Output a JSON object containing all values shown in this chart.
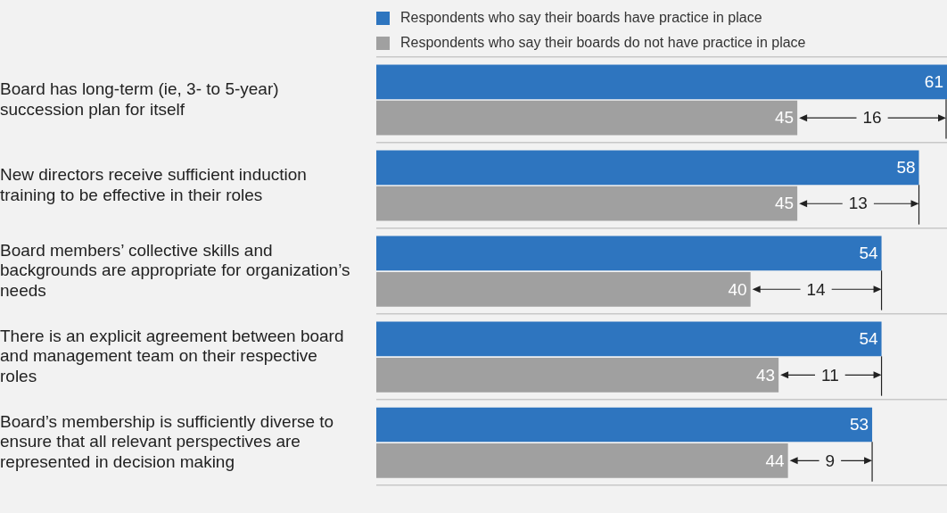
{
  "chart_data": {
    "type": "bar",
    "orientation": "horizontal",
    "categories": [
      "Board has long-term (ie, 3- to 5-year) succession plan for itself",
      "New directors receive sufficient induction training to be effective in their roles",
      "Board members’ collective skills and backgrounds are appropriate for organization’s needs",
      "There is an explicit agreement between board and management team on their respective roles",
      "Board’s membership is sufficiently diverse to ensure that all relevant perspectives are represented in decision making"
    ],
    "series": [
      {
        "name": "Respondents who say their boards have practice in place",
        "color": "#2e75bf",
        "values": [
          61,
          58,
          54,
          54,
          53
        ]
      },
      {
        "name": "Respondents who say their boards do not have practice in place",
        "color": "#a0a0a0",
        "values": [
          45,
          45,
          40,
          43,
          44
        ]
      }
    ],
    "xlim": [
      0,
      61
    ],
    "tick_labels": "y",
    "data_labels": true,
    "legend": "top",
    "grid": "y",
    "annotations": [
      {
        "text": "16",
        "x": 53,
        "y": "Board has long-term (ie, 3- to 5-year) succession plan for itself"
      },
      {
        "text": "13",
        "x": 51.5,
        "y": "New directors receive sufficient induction training to be effective in their roles"
      },
      {
        "text": "14",
        "x": 47,
        "y": "Board members’ collective skills and backgrounds are appropriate for organization’s needs"
      },
      {
        "text": "11",
        "x": 48.5,
        "y": "There is an explicit agreement between board and management team on their respective roles"
      },
      {
        "text": "9",
        "x": 48.5,
        "y": "Board’s membership is sufficiently diverse to ensure that all relevant perspectives are represented in decision making"
      }
    ]
  }
}
